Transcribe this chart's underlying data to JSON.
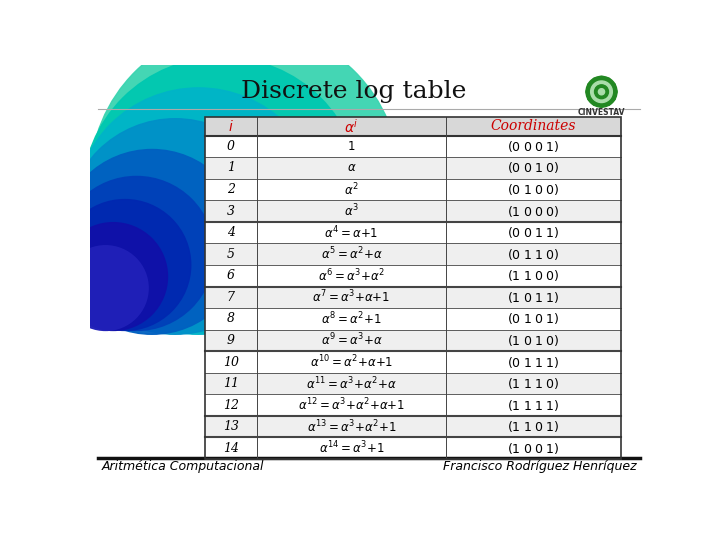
{
  "title": "Discrete log table",
  "title_fontsize": 18,
  "bg_color": "#ffffff",
  "header_row": [
    "i",
    "alpha_i",
    "Coordinates"
  ],
  "header_colors": [
    "#cc0000",
    "#cc0000",
    "#cc0000"
  ],
  "rows": [
    [
      "0",
      "$1$",
      "$(0\\;0\\;0\\;1)$"
    ],
    [
      "1",
      "$\\alpha$",
      "$(0\\;0\\;1\\;0)$"
    ],
    [
      "2",
      "$\\alpha^2$",
      "$(0\\;1\\;0\\;0)$"
    ],
    [
      "3",
      "$\\alpha^3$",
      "$(1\\;0\\;0\\;0)$"
    ],
    [
      "4",
      "$\\alpha^4{=}\\alpha{+}1$",
      "$(0\\;0\\;1\\;1)$"
    ],
    [
      "5",
      "$\\alpha^5{=}\\alpha^2{+}\\alpha$",
      "$(0\\;1\\;1\\;0)$"
    ],
    [
      "6",
      "$\\alpha^6{=}\\alpha^3{+}\\alpha^2$",
      "$(1\\;1\\;0\\;0)$"
    ],
    [
      "7",
      "$\\alpha^7{=}\\alpha^3{+}\\alpha{+}1$",
      "$(1\\;0\\;1\\;1)$"
    ],
    [
      "8",
      "$\\alpha^8{=}\\alpha^2{+}1$",
      "$(0\\;1\\;0\\;1)$"
    ],
    [
      "9",
      "$\\alpha^9{=}\\alpha^3{+}\\alpha$",
      "$(1\\;0\\;1\\;0)$"
    ],
    [
      "10",
      "$\\alpha^{10}{=}\\alpha^2{+}\\alpha{+}1$",
      "$(0\\;1\\;1\\;1)$"
    ],
    [
      "11",
      "$\\alpha^{11}{=}\\alpha^3{+}\\alpha^2{+}\\alpha$",
      "$(1\\;1\\;1\\;0)$"
    ],
    [
      "12",
      "$\\alpha^{12}{=}\\alpha^3{+}\\alpha^2{+}\\alpha{+}1$",
      "$(1\\;1\\;1\\;1)$"
    ],
    [
      "13",
      "$\\alpha^{13}{=}\\alpha^3{+}\\alpha^2{+}1$",
      "$(1\\;1\\;0\\;1)$"
    ],
    [
      "14",
      "$\\alpha^{14}{=}\\alpha^3{+}1$",
      "$(1\\;0\\;0\\;1)$"
    ]
  ],
  "thick_dividers_after": [
    3,
    6,
    9,
    12,
    13
  ],
  "footer_left": "Aritmética Computacional",
  "footer_right": "Francisco Rodríguez Henríquez",
  "footer_color": "#000000",
  "footer_fontsize": 9,
  "table_text_color": "#000000",
  "table_fontsize": 8.5
}
